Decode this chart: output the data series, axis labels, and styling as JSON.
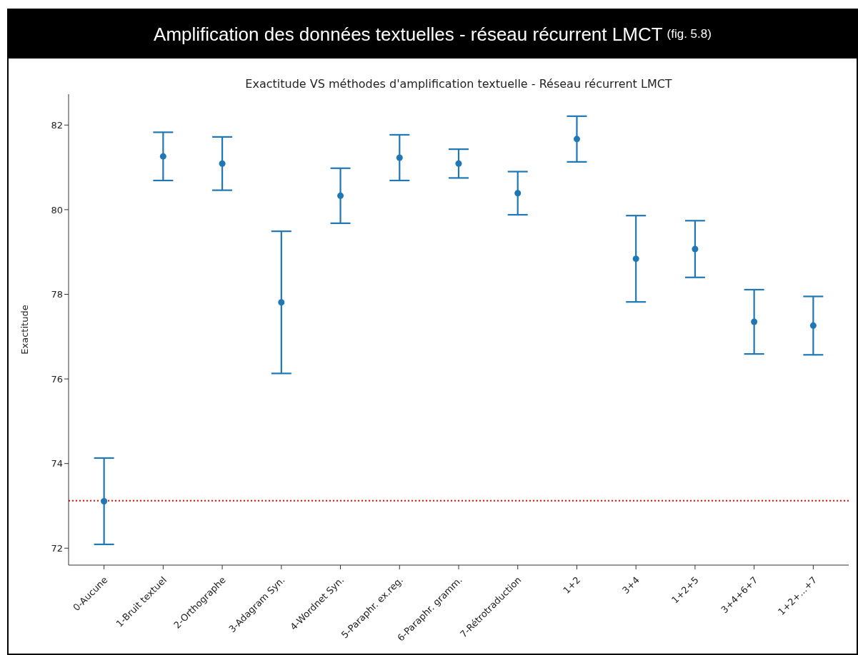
{
  "chart_data": {
    "type": "scatter",
    "title": "Amplification des données textuelles - réseau récurrent LMCT",
    "subtitle": "Exactitude VS méthodes d'amplification textuelle - Réseau récurrent LMCT",
    "annotations": [
      "(fig. 5.8)"
    ],
    "ylabel": "Exactitude",
    "categories": [
      "0-Aucune",
      "1-Bruit textuel",
      "2-Orthographe",
      "3-Adagram Syn.",
      "4-Wordnet Syn.",
      "5-Paraphr. ex.reg.",
      "6-Paraphr. gramm.",
      "7-Rétrotraduction",
      "1+2",
      "3+4",
      "1+2+5",
      "3+4+6+7",
      "1+2+...+7"
    ],
    "values": [
      73.11,
      81.26,
      81.09,
      77.81,
      80.33,
      81.23,
      81.09,
      80.39,
      81.67,
      78.84,
      79.07,
      77.35,
      77.26
    ],
    "errors": [
      1.02,
      0.57,
      0.63,
      1.68,
      0.65,
      0.54,
      0.34,
      0.51,
      0.54,
      1.02,
      0.67,
      0.76,
      0.69
    ],
    "color": "#1f77b4",
    "marker": "circle",
    "ylim": [
      71.6,
      82.73
    ],
    "yticks": [
      72,
      74,
      76,
      78,
      80,
      82
    ],
    "ref_lines": [
      {
        "axis": "y",
        "value": 73.12,
        "color": "#ff0000",
        "line_style": "dotted"
      }
    ],
    "grid": false,
    "legend": false
  }
}
